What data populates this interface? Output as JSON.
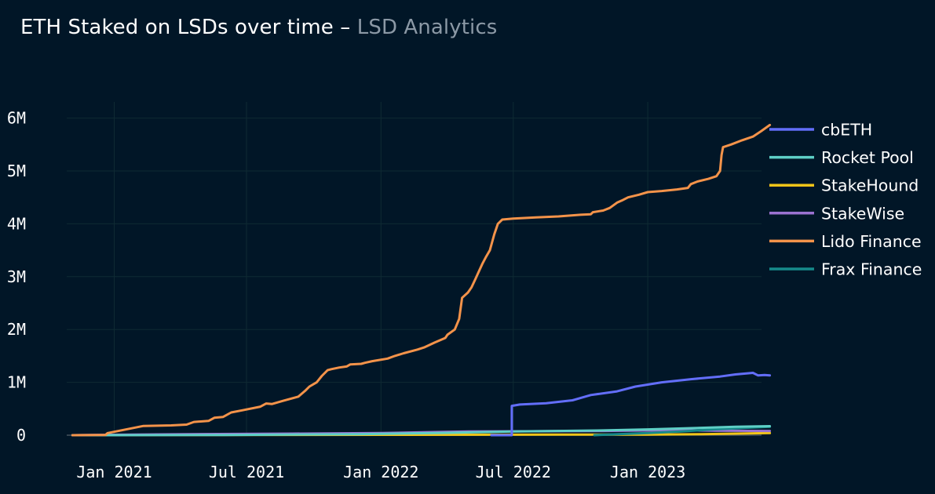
{
  "chart_data": {
    "type": "line",
    "title": "ETH Staked on LSDs over time",
    "subtitle": "LSD Analytics",
    "xlabel": "",
    "ylabel": "",
    "x_ticks": [
      "2021-01-01",
      "2021-07-01",
      "2022-01-01",
      "2022-07-01",
      "2023-01-01"
    ],
    "x_tick_labels": [
      "Jan 2021",
      "Jul 2021",
      "Jan 2022",
      "Jul 2022",
      "Jan 2023"
    ],
    "y_ticks": [
      0,
      1000000,
      2000000,
      3000000,
      4000000,
      5000000,
      6000000
    ],
    "y_tick_labels": [
      "0",
      "1M",
      "2M",
      "3M",
      "4M",
      "5M",
      "6M"
    ],
    "xlim": [
      "2020-11-01",
      "2023-07-01"
    ],
    "ylim": [
      -50000,
      6250000
    ],
    "grid": true,
    "legend_position": "right",
    "series": [
      {
        "name": "cbETH",
        "color": "#636efa",
        "points": [
          [
            "2022-06-01",
            0
          ],
          [
            "2022-06-29",
            0
          ],
          [
            "2022-06-29",
            555000
          ],
          [
            "2022-07-10",
            580000
          ],
          [
            "2022-08-15",
            605000
          ],
          [
            "2022-09-20",
            660000
          ],
          [
            "2022-10-15",
            760000
          ],
          [
            "2022-11-20",
            830000
          ],
          [
            "2022-12-15",
            920000
          ],
          [
            "2023-01-20",
            1000000
          ],
          [
            "2023-03-01",
            1060000
          ],
          [
            "2023-04-10",
            1110000
          ],
          [
            "2023-05-01",
            1150000
          ],
          [
            "2023-05-25",
            1180000
          ],
          [
            "2023-06-01",
            1130000
          ],
          [
            "2023-06-10",
            1140000
          ],
          [
            "2023-06-17",
            1130000
          ]
        ]
      },
      {
        "name": "Rocket Pool",
        "color": "#5ecfc6",
        "points": [
          [
            "2020-11-05",
            0
          ],
          [
            "2021-06-01",
            5000
          ],
          [
            "2021-12-01",
            20000
          ],
          [
            "2022-04-01",
            45000
          ],
          [
            "2022-07-01",
            70000
          ],
          [
            "2022-11-01",
            90000
          ],
          [
            "2023-01-01",
            110000
          ],
          [
            "2023-03-15",
            140000
          ],
          [
            "2023-05-01",
            160000
          ],
          [
            "2023-06-17",
            170000
          ]
        ]
      },
      {
        "name": "StakeHound",
        "color": "#f2c519",
        "points": [
          [
            "2020-11-05",
            0
          ],
          [
            "2021-03-01",
            3000
          ],
          [
            "2022-01-01",
            8000
          ],
          [
            "2022-09-01",
            10000
          ],
          [
            "2023-01-01",
            12000
          ],
          [
            "2023-03-15",
            20000
          ],
          [
            "2023-05-01",
            30000
          ],
          [
            "2023-06-17",
            40000
          ]
        ]
      },
      {
        "name": "StakeWise",
        "color": "#9b72d0",
        "points": [
          [
            "2020-11-05",
            0
          ],
          [
            "2021-03-01",
            15000
          ],
          [
            "2021-09-01",
            30000
          ],
          [
            "2022-01-01",
            40000
          ],
          [
            "2022-03-01",
            55000
          ],
          [
            "2022-05-01",
            70000
          ],
          [
            "2022-11-01",
            80000
          ],
          [
            "2023-02-01",
            95000
          ],
          [
            "2023-04-01",
            85000
          ],
          [
            "2023-06-17",
            80000
          ]
        ]
      },
      {
        "name": "Lido Finance",
        "color": "#f4934a",
        "points": [
          [
            "2020-11-05",
            0
          ],
          [
            "2020-12-20",
            5000
          ],
          [
            "2020-12-23",
            40000
          ],
          [
            "2021-01-25",
            130000
          ],
          [
            "2021-02-10",
            175000
          ],
          [
            "2021-03-20",
            185000
          ],
          [
            "2021-04-10",
            200000
          ],
          [
            "2021-04-20",
            250000
          ],
          [
            "2021-05-10",
            270000
          ],
          [
            "2021-05-18",
            330000
          ],
          [
            "2021-05-30",
            345000
          ],
          [
            "2021-06-10",
            430000
          ],
          [
            "2021-06-25",
            470000
          ],
          [
            "2021-07-20",
            540000
          ],
          [
            "2021-07-28",
            600000
          ],
          [
            "2021-08-05",
            590000
          ],
          [
            "2021-08-20",
            650000
          ],
          [
            "2021-09-10",
            730000
          ],
          [
            "2021-09-20",
            850000
          ],
          [
            "2021-09-25",
            920000
          ],
          [
            "2021-10-05",
            1000000
          ],
          [
            "2021-10-12",
            1120000
          ],
          [
            "2021-10-20",
            1230000
          ],
          [
            "2021-10-25",
            1250000
          ],
          [
            "2021-11-05",
            1280000
          ],
          [
            "2021-11-15",
            1300000
          ],
          [
            "2021-11-20",
            1340000
          ],
          [
            "2021-12-05",
            1350000
          ],
          [
            "2021-12-10",
            1370000
          ],
          [
            "2021-12-20",
            1400000
          ],
          [
            "2022-01-10",
            1450000
          ],
          [
            "2022-01-20",
            1500000
          ],
          [
            "2022-02-01",
            1550000
          ],
          [
            "2022-02-20",
            1620000
          ],
          [
            "2022-03-01",
            1660000
          ],
          [
            "2022-03-15",
            1750000
          ],
          [
            "2022-03-30",
            1840000
          ],
          [
            "2022-04-02",
            1900000
          ],
          [
            "2022-04-12",
            2000000
          ],
          [
            "2022-04-18",
            2200000
          ],
          [
            "2022-04-22",
            2600000
          ],
          [
            "2022-04-30",
            2700000
          ],
          [
            "2022-05-05",
            2800000
          ],
          [
            "2022-05-10",
            2950000
          ],
          [
            "2022-05-15",
            3100000
          ],
          [
            "2022-05-20",
            3250000
          ],
          [
            "2022-05-25",
            3380000
          ],
          [
            "2022-05-30",
            3500000
          ],
          [
            "2022-06-05",
            3800000
          ],
          [
            "2022-06-10",
            4000000
          ],
          [
            "2022-06-16",
            4080000
          ],
          [
            "2022-07-01",
            4100000
          ],
          [
            "2022-08-01",
            4120000
          ],
          [
            "2022-09-01",
            4140000
          ],
          [
            "2022-10-01",
            4170000
          ],
          [
            "2022-10-15",
            4180000
          ],
          [
            "2022-10-18",
            4220000
          ],
          [
            "2022-11-01",
            4250000
          ],
          [
            "2022-11-10",
            4300000
          ],
          [
            "2022-11-20",
            4400000
          ],
          [
            "2022-11-28",
            4450000
          ],
          [
            "2022-12-05",
            4500000
          ],
          [
            "2022-12-20",
            4550000
          ],
          [
            "2023-01-01",
            4600000
          ],
          [
            "2023-01-20",
            4620000
          ],
          [
            "2023-02-10",
            4650000
          ],
          [
            "2023-02-25",
            4680000
          ],
          [
            "2023-03-01",
            4750000
          ],
          [
            "2023-03-10",
            4800000
          ],
          [
            "2023-03-25",
            4850000
          ],
          [
            "2023-04-05",
            4900000
          ],
          [
            "2023-04-10",
            5000000
          ],
          [
            "2023-04-12",
            5300000
          ],
          [
            "2023-04-14",
            5450000
          ],
          [
            "2023-04-25",
            5500000
          ],
          [
            "2023-05-10",
            5580000
          ],
          [
            "2023-05-25",
            5650000
          ],
          [
            "2023-06-05",
            5750000
          ],
          [
            "2023-06-17",
            5870000
          ]
        ]
      },
      {
        "name": "Frax Finance",
        "color": "#168a8a",
        "points": [
          [
            "2022-10-20",
            0
          ],
          [
            "2023-01-01",
            40000
          ],
          [
            "2023-02-15",
            70000
          ],
          [
            "2023-04-01",
            110000
          ],
          [
            "2023-05-15",
            140000
          ],
          [
            "2023-06-17",
            160000
          ]
        ]
      }
    ]
  }
}
